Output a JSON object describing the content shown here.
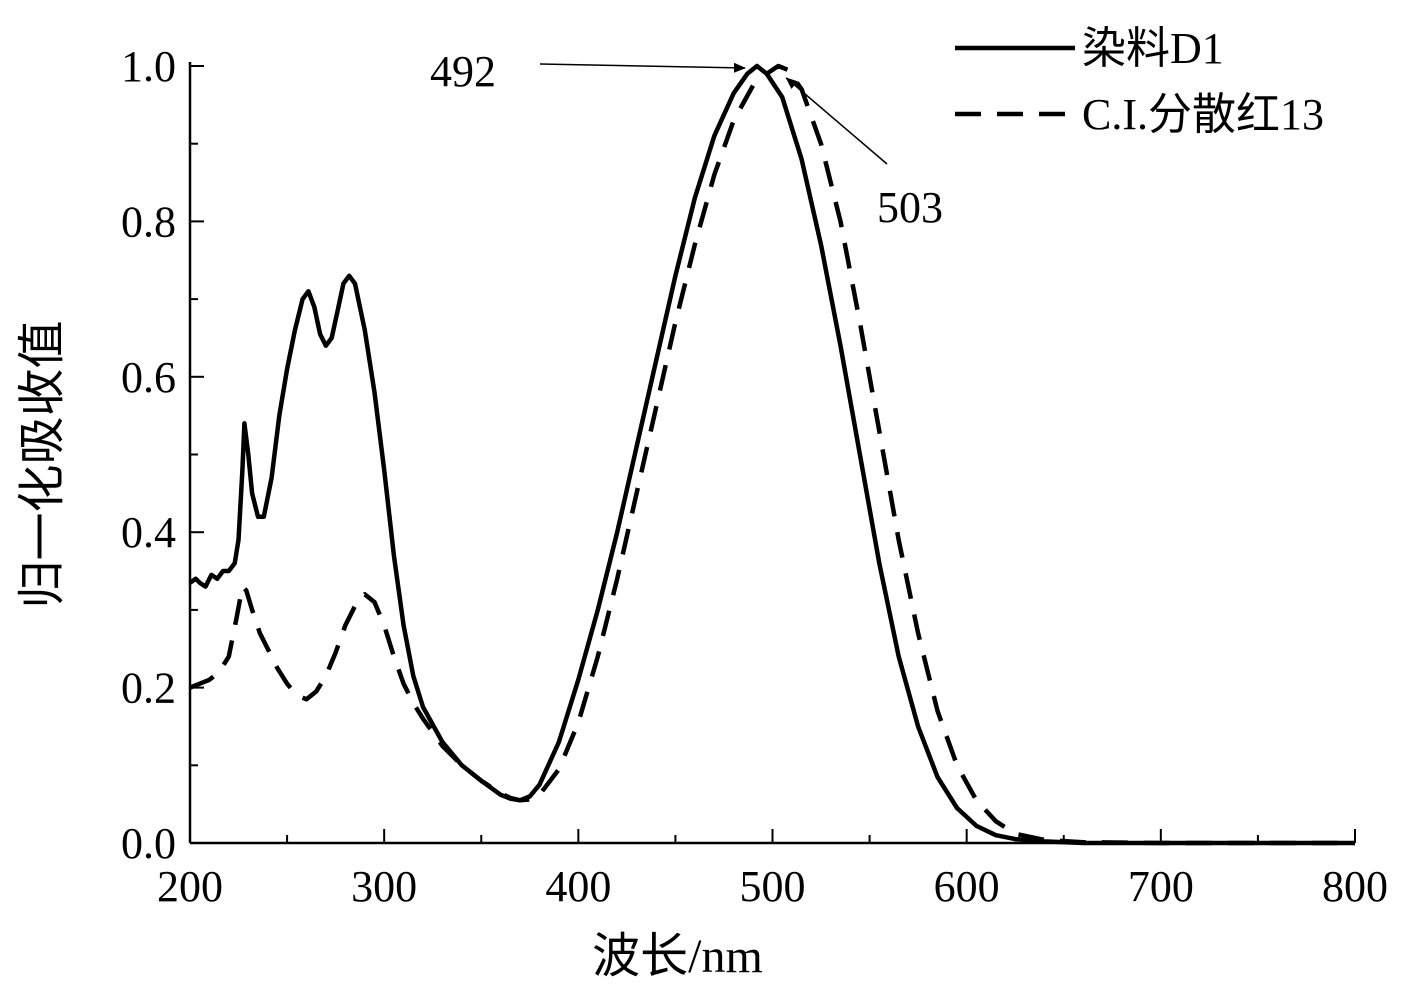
{
  "chart_data": {
    "type": "line",
    "title": "",
    "xlabel": "波长/nm",
    "ylabel": "归一化吸收值",
    "xlim": [
      200,
      800
    ],
    "ylim": [
      0.0,
      1.0
    ],
    "x_ticks": [
      200,
      300,
      400,
      500,
      600,
      700,
      800
    ],
    "x_tick_labels": [
      "200",
      "300",
      "400",
      "500",
      "600",
      "700",
      "800"
    ],
    "y_ticks": [
      0.0,
      0.2,
      0.4,
      0.6,
      0.8,
      1.0
    ],
    "y_tick_labels": [
      "0.0",
      "0.2",
      "0.4",
      "0.6",
      "0.8",
      "1.0"
    ],
    "grid": false,
    "legend_position": "top-right",
    "series": [
      {
        "name": "染料D1",
        "style": "solid",
        "color": "#000000",
        "points": [
          [
            200,
            0.335
          ],
          [
            203,
            0.34
          ],
          [
            205,
            0.335
          ],
          [
            208,
            0.33
          ],
          [
            211,
            0.345
          ],
          [
            214,
            0.34
          ],
          [
            217,
            0.35
          ],
          [
            220,
            0.35
          ],
          [
            223,
            0.36
          ],
          [
            225,
            0.39
          ],
          [
            227,
            0.48
          ],
          [
            228,
            0.54
          ],
          [
            230,
            0.5
          ],
          [
            232,
            0.45
          ],
          [
            235,
            0.42
          ],
          [
            238,
            0.42
          ],
          [
            242,
            0.47
          ],
          [
            246,
            0.55
          ],
          [
            250,
            0.61
          ],
          [
            254,
            0.66
          ],
          [
            258,
            0.7
          ],
          [
            261,
            0.71
          ],
          [
            264,
            0.69
          ],
          [
            267,
            0.655
          ],
          [
            270,
            0.64
          ],
          [
            273,
            0.65
          ],
          [
            276,
            0.685
          ],
          [
            279,
            0.72
          ],
          [
            282,
            0.73
          ],
          [
            285,
            0.72
          ],
          [
            290,
            0.66
          ],
          [
            295,
            0.58
          ],
          [
            300,
            0.48
          ],
          [
            305,
            0.37
          ],
          [
            310,
            0.28
          ],
          [
            315,
            0.215
          ],
          [
            320,
            0.175
          ],
          [
            330,
            0.13
          ],
          [
            340,
            0.1
          ],
          [
            350,
            0.08
          ],
          [
            360,
            0.062
          ],
          [
            365,
            0.057
          ],
          [
            370,
            0.055
          ],
          [
            375,
            0.06
          ],
          [
            380,
            0.075
          ],
          [
            390,
            0.13
          ],
          [
            400,
            0.21
          ],
          [
            410,
            0.3
          ],
          [
            420,
            0.4
          ],
          [
            430,
            0.51
          ],
          [
            440,
            0.62
          ],
          [
            450,
            0.73
          ],
          [
            460,
            0.83
          ],
          [
            470,
            0.91
          ],
          [
            480,
            0.965
          ],
          [
            487,
            0.99
          ],
          [
            492,
            1.0
          ],
          [
            497,
            0.99
          ],
          [
            505,
            0.96
          ],
          [
            515,
            0.88
          ],
          [
            525,
            0.77
          ],
          [
            535,
            0.64
          ],
          [
            545,
            0.5
          ],
          [
            555,
            0.36
          ],
          [
            565,
            0.24
          ],
          [
            575,
            0.15
          ],
          [
            585,
            0.085
          ],
          [
            595,
            0.045
          ],
          [
            605,
            0.022
          ],
          [
            615,
            0.01
          ],
          [
            625,
            0.005
          ],
          [
            640,
            0.002
          ],
          [
            660,
            0.0
          ],
          [
            700,
            0.0
          ],
          [
            750,
            0.0
          ],
          [
            800,
            0.0
          ]
        ]
      },
      {
        "name": "C.I.分散红13",
        "style": "dashed",
        "color": "#000000",
        "points": [
          [
            200,
            0.2
          ],
          [
            205,
            0.205
          ],
          [
            210,
            0.21
          ],
          [
            215,
            0.22
          ],
          [
            220,
            0.24
          ],
          [
            224,
            0.29
          ],
          [
            227,
            0.33
          ],
          [
            229,
            0.325
          ],
          [
            232,
            0.3
          ],
          [
            236,
            0.27
          ],
          [
            240,
            0.25
          ],
          [
            245,
            0.225
          ],
          [
            250,
            0.205
          ],
          [
            255,
            0.19
          ],
          [
            260,
            0.185
          ],
          [
            265,
            0.195
          ],
          [
            270,
            0.215
          ],
          [
            275,
            0.245
          ],
          [
            280,
            0.28
          ],
          [
            285,
            0.305
          ],
          [
            290,
            0.32
          ],
          [
            295,
            0.31
          ],
          [
            300,
            0.28
          ],
          [
            305,
            0.24
          ],
          [
            310,
            0.205
          ],
          [
            315,
            0.18
          ],
          [
            320,
            0.16
          ],
          [
            330,
            0.125
          ],
          [
            340,
            0.1
          ],
          [
            350,
            0.08
          ],
          [
            360,
            0.064
          ],
          [
            365,
            0.058
          ],
          [
            370,
            0.055
          ],
          [
            375,
            0.056
          ],
          [
            380,
            0.062
          ],
          [
            390,
            0.095
          ],
          [
            400,
            0.155
          ],
          [
            410,
            0.24
          ],
          [
            420,
            0.34
          ],
          [
            430,
            0.45
          ],
          [
            440,
            0.56
          ],
          [
            450,
            0.67
          ],
          [
            460,
            0.77
          ],
          [
            470,
            0.86
          ],
          [
            480,
            0.93
          ],
          [
            490,
            0.975
          ],
          [
            497,
            0.99
          ],
          [
            503,
            1.0
          ],
          [
            508,
            0.995
          ],
          [
            515,
            0.97
          ],
          [
            525,
            0.9
          ],
          [
            535,
            0.8
          ],
          [
            545,
            0.67
          ],
          [
            555,
            0.53
          ],
          [
            565,
            0.39
          ],
          [
            575,
            0.27
          ],
          [
            585,
            0.17
          ],
          [
            595,
            0.1
          ],
          [
            605,
            0.055
          ],
          [
            615,
            0.028
          ],
          [
            625,
            0.012
          ],
          [
            640,
            0.004
          ],
          [
            660,
            0.001
          ],
          [
            700,
            0.0
          ],
          [
            750,
            0.0
          ],
          [
            800,
            0.0
          ]
        ]
      }
    ],
    "annotations": [
      {
        "text": "492",
        "x": 492,
        "y": 1.0
      },
      {
        "text": "503",
        "x": 503,
        "y": 1.0
      }
    ]
  }
}
